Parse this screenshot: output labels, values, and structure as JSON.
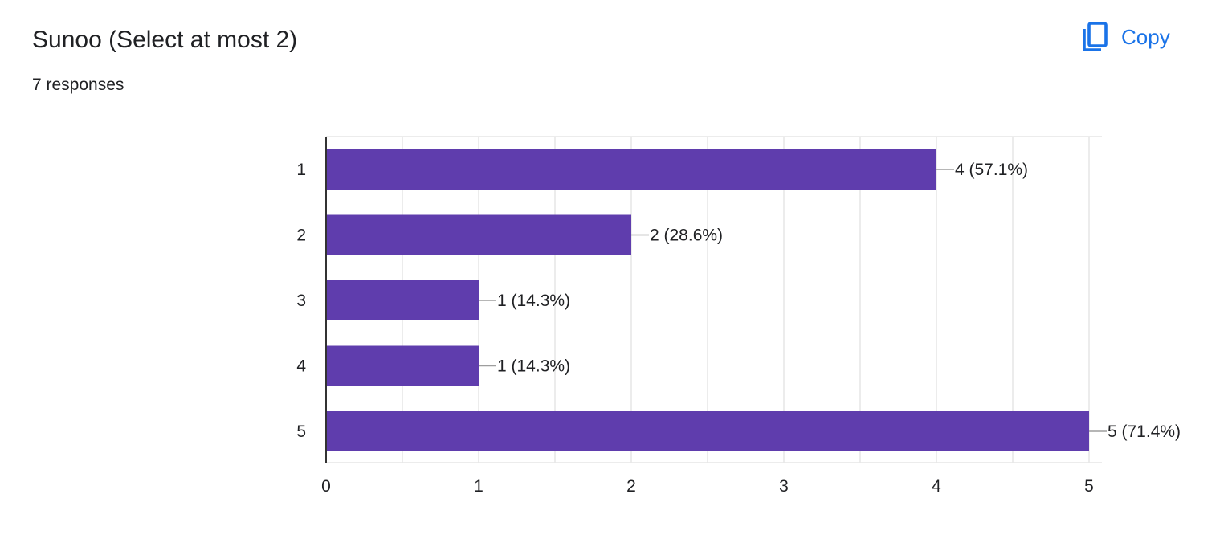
{
  "question": {
    "title": "Sunoo (Select at most 2)",
    "responses_text": "7 responses"
  },
  "copy_button": {
    "label": "Copy",
    "icon": "copy-icon",
    "color": "#1a73e8"
  },
  "chart_data": {
    "type": "bar",
    "orientation": "horizontal",
    "categories": [
      "1",
      "2",
      "3",
      "4",
      "5"
    ],
    "values": [
      4,
      2,
      1,
      1,
      5
    ],
    "data_labels": [
      "4 (57.1%)",
      "2 (28.6%)",
      "1 (14.3%)",
      "1 (14.3%)",
      "5 (71.4%)"
    ],
    "x_ticks": [
      "0",
      "1",
      "2",
      "3",
      "4",
      "5"
    ],
    "xlim": [
      0,
      5
    ],
    "grid": true,
    "bar_color": "#5f3dad",
    "title": "",
    "xlabel": "",
    "ylabel": ""
  }
}
